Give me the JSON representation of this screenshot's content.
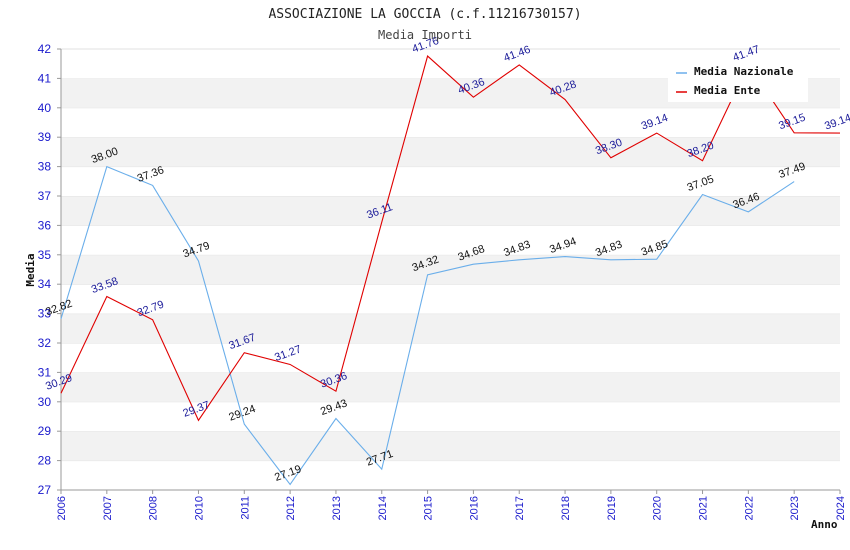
{
  "chart_data": {
    "type": "line",
    "title": "ASSOCIAZIONE LA GOCCIA (c.f.11216730157)",
    "subtitle": "Media Importi",
    "xlabel": "Anno",
    "ylabel": "Media",
    "ylim": [
      27,
      42
    ],
    "yticks": [
      "27",
      "28",
      "29",
      "30",
      "31",
      "32",
      "33",
      "34",
      "35",
      "36",
      "37",
      "38",
      "39",
      "40",
      "41",
      "42"
    ],
    "categories": [
      "2006",
      "2007",
      "2008",
      "2010",
      "2011",
      "2012",
      "2013",
      "2014",
      "2015",
      "2016",
      "2017",
      "2018",
      "2019",
      "2020",
      "2021",
      "2022",
      "2023",
      "2024"
    ],
    "grid": "horizontal alternating bands",
    "legend_position": "top-right",
    "series": [
      {
        "name": "Media Nazionale",
        "color": "#6aaeea",
        "values": [
          32.82,
          38.0,
          37.36,
          34.79,
          29.24,
          27.19,
          29.43,
          27.71,
          34.32,
          34.68,
          34.83,
          34.94,
          34.83,
          34.85,
          37.05,
          36.46,
          37.49,
          null
        ],
        "labels": [
          "32.82",
          "38.00",
          "37.36",
          "34.79",
          "29.24",
          "27.19",
          "29.43",
          "27.71",
          "34.32",
          "34.68",
          "34.83",
          "34.94",
          "34.83",
          "34.85",
          "37.05",
          "36.46",
          "37.49",
          ""
        ]
      },
      {
        "name": "Media Ente",
        "color": "#e00000",
        "values": [
          30.29,
          33.58,
          32.79,
          29.37,
          31.67,
          31.27,
          30.36,
          36.11,
          41.76,
          40.36,
          41.46,
          40.28,
          38.3,
          39.14,
          38.2,
          41.47,
          39.15,
          39.14
        ],
        "labels": [
          "30.29",
          "33.58",
          "32.79",
          "29.37",
          "31.67",
          "31.27",
          "30.36",
          "36.11",
          "41.76",
          "40.36",
          "41.46",
          "40.28",
          "38.30",
          "39.14",
          "38.20",
          "41.47",
          "39.15",
          "39.14"
        ]
      }
    ]
  }
}
